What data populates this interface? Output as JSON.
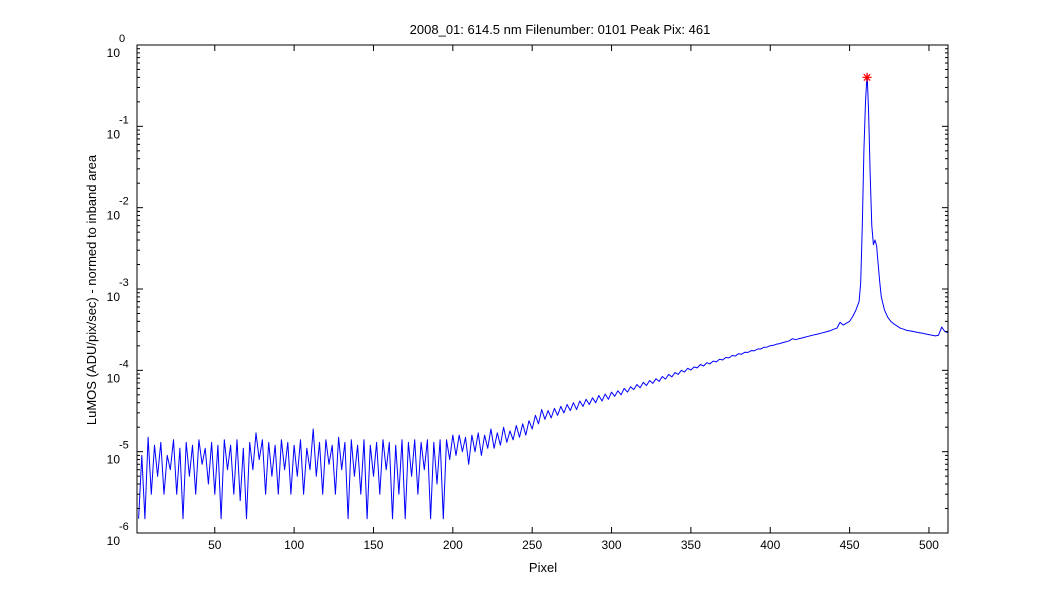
{
  "chart_data": {
    "type": "line",
    "title": "2008_01: 614.5 nm  Filenumber: 0101 Peak Pix: 461",
    "xlabel": "Pixel",
    "ylabel": "LuMOS (ADU/pix/sec) - normed to inband area",
    "xlim": [
      1,
      512
    ],
    "ylim": [
      1e-06,
      1
    ],
    "yscale": "log",
    "grid": false,
    "x_ticks": [
      50,
      100,
      150,
      200,
      250,
      300,
      350,
      400,
      450,
      500
    ],
    "y_ticks": [
      {
        "value": 1,
        "base": "10",
        "exp": "0"
      },
      {
        "value": 0.1,
        "base": "10",
        "exp": "-1"
      },
      {
        "value": 0.01,
        "base": "10",
        "exp": "-2"
      },
      {
        "value": 0.001,
        "base": "10",
        "exp": "-3"
      },
      {
        "value": 0.0001,
        "base": "10",
        "exp": "-4"
      },
      {
        "value": 1e-05,
        "base": "10",
        "exp": "-5"
      },
      {
        "value": 1e-06,
        "base": "10",
        "exp": "-6"
      }
    ],
    "series": [
      {
        "color": "#0000ff",
        "points": [
          [
            2,
            1.5e-06
          ],
          [
            4,
            9e-06
          ],
          [
            6,
            1.5e-06
          ],
          [
            8,
            1.5e-05
          ],
          [
            10,
            3e-06
          ],
          [
            12,
            1.2e-05
          ],
          [
            14,
            5e-06
          ],
          [
            16,
            1.3e-05
          ],
          [
            18,
            3e-06
          ],
          [
            20,
            9e-06
          ],
          [
            22,
            6e-06
          ],
          [
            24,
            1.4e-05
          ],
          [
            26,
            3e-06
          ],
          [
            28,
            1.1e-05
          ],
          [
            30,
            1.5e-06
          ],
          [
            32,
            1.3e-05
          ],
          [
            34,
            5e-06
          ],
          [
            36,
            1.2e-05
          ],
          [
            38,
            3e-06
          ],
          [
            40,
            1.4e-05
          ],
          [
            42,
            7e-06
          ],
          [
            44,
            1.1e-05
          ],
          [
            46,
            4e-06
          ],
          [
            48,
            1.3e-05
          ],
          [
            50,
            3e-06
          ],
          [
            52,
            1.2e-05
          ],
          [
            54,
            1.5e-06
          ],
          [
            56,
            1.4e-05
          ],
          [
            58,
            6e-06
          ],
          [
            60,
            1.2e-05
          ],
          [
            62,
            3e-06
          ],
          [
            64,
            1.4e-05
          ],
          [
            66,
            2.5e-06
          ],
          [
            68,
            1.1e-05
          ],
          [
            70,
            1.5e-06
          ],
          [
            72,
            1.3e-05
          ],
          [
            74,
            6e-06
          ],
          [
            76,
            1.7e-05
          ],
          [
            78,
            8e-06
          ],
          [
            80,
            1.4e-05
          ],
          [
            82,
            3e-06
          ],
          [
            84,
            1.3e-05
          ],
          [
            86,
            5e-06
          ],
          [
            88,
            1.2e-05
          ],
          [
            90,
            3e-06
          ],
          [
            92,
            1.4e-05
          ],
          [
            94,
            6e-06
          ],
          [
            96,
            1.3e-05
          ],
          [
            98,
            3e-06
          ],
          [
            100,
            1.2e-05
          ],
          [
            102,
            5e-06
          ],
          [
            104,
            1.4e-05
          ],
          [
            106,
            3e-06
          ],
          [
            108,
            1.1e-05
          ],
          [
            110,
            6e-06
          ],
          [
            112,
            1.9e-05
          ],
          [
            114,
            5e-06
          ],
          [
            116,
            1.3e-05
          ],
          [
            118,
            3e-06
          ],
          [
            120,
            1.4e-05
          ],
          [
            122,
            7e-06
          ],
          [
            124,
            1.2e-05
          ],
          [
            126,
            3e-06
          ],
          [
            128,
            1.5e-05
          ],
          [
            130,
            6e-06
          ],
          [
            132,
            1.3e-05
          ],
          [
            134,
            1.5e-06
          ],
          [
            136,
            1.4e-05
          ],
          [
            138,
            5e-06
          ],
          [
            140,
            1.2e-05
          ],
          [
            142,
            3e-06
          ],
          [
            144,
            1.4e-05
          ],
          [
            146,
            1.5e-06
          ],
          [
            148,
            1.2e-05
          ],
          [
            150,
            5e-06
          ],
          [
            152,
            1.3e-05
          ],
          [
            154,
            3e-06
          ],
          [
            156,
            1.4e-05
          ],
          [
            158,
            6e-06
          ],
          [
            160,
            1.3e-05
          ],
          [
            162,
            1.5e-06
          ],
          [
            164,
            1.2e-05
          ],
          [
            166,
            3e-06
          ],
          [
            168,
            1.4e-05
          ],
          [
            170,
            1.5e-06
          ],
          [
            172,
            1.3e-05
          ],
          [
            174,
            5e-06
          ],
          [
            176,
            1.4e-05
          ],
          [
            178,
            3e-06
          ],
          [
            180,
            1.3e-05
          ],
          [
            182,
            6e-06
          ],
          [
            184,
            1.4e-05
          ],
          [
            186,
            1.5e-06
          ],
          [
            188,
            1.3e-05
          ],
          [
            190,
            4e-06
          ],
          [
            192,
            1.4e-05
          ],
          [
            194,
            1.5e-06
          ],
          [
            196,
            1.4e-05
          ],
          [
            198,
            8e-06
          ],
          [
            200,
            1.6e-05
          ],
          [
            202,
            9e-06
          ],
          [
            204,
            1.6e-05
          ],
          [
            206,
            1e-05
          ],
          [
            208,
            1.5e-05
          ],
          [
            210,
            7e-06
          ],
          [
            212,
            1.6e-05
          ],
          [
            214,
            1e-05
          ],
          [
            216,
            1.7e-05
          ],
          [
            218,
            9e-06
          ],
          [
            220,
            1.6e-05
          ],
          [
            222,
            1.1e-05
          ],
          [
            224,
            1.9e-05
          ],
          [
            226,
            1.1e-05
          ],
          [
            228,
            1.7e-05
          ],
          [
            230,
            1.2e-05
          ],
          [
            232,
            2e-05
          ],
          [
            234,
            1.3e-05
          ],
          [
            236,
            1.8e-05
          ],
          [
            238,
            1.4e-05
          ],
          [
            240,
            2.1e-05
          ],
          [
            242,
            1.5e-05
          ],
          [
            244,
            2.2e-05
          ],
          [
            246,
            1.6e-05
          ],
          [
            248,
            2.4e-05
          ],
          [
            250,
            1.9e-05
          ],
          [
            252,
            2.8e-05
          ],
          [
            254,
            2.2e-05
          ],
          [
            256,
            3.3e-05
          ],
          [
            258,
            2.5e-05
          ],
          [
            260,
            3.2e-05
          ],
          [
            262,
            2.6e-05
          ],
          [
            264,
            3.4e-05
          ],
          [
            266,
            2.8e-05
          ],
          [
            268,
            3.6e-05
          ],
          [
            270,
            3e-05
          ],
          [
            272,
            3.8e-05
          ],
          [
            274,
            3.2e-05
          ],
          [
            276,
            4e-05
          ],
          [
            278,
            3.3e-05
          ],
          [
            280,
            4.2e-05
          ],
          [
            282,
            3.6e-05
          ],
          [
            284,
            4.4e-05
          ],
          [
            286,
            3.8e-05
          ],
          [
            288,
            4.6e-05
          ],
          [
            290,
            4e-05
          ],
          [
            292,
            4.9e-05
          ],
          [
            294,
            4.2e-05
          ],
          [
            296,
            5.1e-05
          ],
          [
            298,
            4.4e-05
          ],
          [
            300,
            5.4e-05
          ],
          [
            302,
            4.8e-05
          ],
          [
            304,
            5.6e-05
          ],
          [
            306,
            5e-05
          ],
          [
            308,
            6e-05
          ],
          [
            310,
            5.4e-05
          ],
          [
            312,
            6.3e-05
          ],
          [
            314,
            5.8e-05
          ],
          [
            316,
            6.7e-05
          ],
          [
            318,
            6.1e-05
          ],
          [
            320,
            7.1e-05
          ],
          [
            322,
            6.5e-05
          ],
          [
            324,
            7.5e-05
          ],
          [
            326,
            6.9e-05
          ],
          [
            328,
            7.9e-05
          ],
          [
            330,
            7.3e-05
          ],
          [
            332,
            8.4e-05
          ],
          [
            334,
            7.8e-05
          ],
          [
            336,
            8.9e-05
          ],
          [
            338,
            8.3e-05
          ],
          [
            340,
            9.4e-05
          ],
          [
            342,
            8.9e-05
          ],
          [
            344,
            0.0001
          ],
          [
            346,
            9.5e-05
          ],
          [
            348,
            0.000106
          ],
          [
            350,
            0.000101
          ],
          [
            352,
            0.00011
          ],
          [
            354,
            0.000107
          ],
          [
            356,
            0.000118
          ],
          [
            358,
            0.000113
          ],
          [
            360,
            0.000124
          ],
          [
            362,
            0.00012
          ],
          [
            364,
            0.00013
          ],
          [
            366,
            0.000127
          ],
          [
            368,
            0.000137
          ],
          [
            370,
            0.000134
          ],
          [
            372,
            0.000144
          ],
          [
            374,
            0.000142
          ],
          [
            376,
            0.000152
          ],
          [
            378,
            0.00015
          ],
          [
            380,
            0.00016
          ],
          [
            382,
            0.000158
          ],
          [
            384,
            0.000167
          ],
          [
            386,
            0.000166
          ],
          [
            388,
            0.000175
          ],
          [
            390,
            0.000174
          ],
          [
            392,
            0.000183
          ],
          [
            394,
            0.000183
          ],
          [
            396,
            0.000192
          ],
          [
            398,
            0.000193
          ],
          [
            400,
            0.000201
          ],
          [
            402,
            0.000203
          ],
          [
            404,
            0.00021
          ],
          [
            406,
            0.000213
          ],
          [
            408,
            0.00022
          ],
          [
            410,
            0.000224
          ],
          [
            412,
            0.000231
          ],
          [
            414,
            0.000245
          ],
          [
            416,
            0.000238
          ],
          [
            418,
            0.000245
          ],
          [
            420,
            0.00025
          ],
          [
            422,
            0.000256
          ],
          [
            424,
            0.000262
          ],
          [
            426,
            0.000268
          ],
          [
            428,
            0.000274
          ],
          [
            430,
            0.00028
          ],
          [
            432,
            0.000286
          ],
          [
            434,
            0.000293
          ],
          [
            436,
            0.0003
          ],
          [
            438,
            0.000308
          ],
          [
            440,
            0.00032
          ],
          [
            442,
            0.00033
          ],
          [
            444,
            0.00039
          ],
          [
            446,
            0.00036
          ],
          [
            448,
            0.00038
          ],
          [
            450,
            0.0004
          ],
          [
            452,
            0.00046
          ],
          [
            454,
            0.00055
          ],
          [
            456,
            0.0007
          ],
          [
            457,
            0.0012
          ],
          [
            458,
            0.006
          ],
          [
            459,
            0.05
          ],
          [
            460,
            0.2
          ],
          [
            461,
            0.45
          ],
          [
            462,
            0.15
          ],
          [
            463,
            0.025
          ],
          [
            464,
            0.006
          ],
          [
            465,
            0.0035
          ],
          [
            466,
            0.004
          ],
          [
            467,
            0.0034
          ],
          [
            468,
            0.002
          ],
          [
            469,
            0.0012
          ],
          [
            470,
            0.0008
          ],
          [
            472,
            0.00055
          ],
          [
            474,
            0.00045
          ],
          [
            476,
            0.0004
          ],
          [
            478,
            0.00037
          ],
          [
            480,
            0.00035
          ],
          [
            482,
            0.00033
          ],
          [
            484,
            0.00032
          ],
          [
            486,
            0.00031
          ],
          [
            488,
            0.000305
          ],
          [
            490,
            0.0003
          ],
          [
            492,
            0.000295
          ],
          [
            494,
            0.00029
          ],
          [
            496,
            0.000285
          ],
          [
            498,
            0.00028
          ],
          [
            500,
            0.000275
          ],
          [
            502,
            0.00027
          ],
          [
            504,
            0.000265
          ],
          [
            506,
            0.00027
          ],
          [
            508,
            0.00034
          ],
          [
            510,
            0.0003
          ],
          [
            512,
            0.00029
          ]
        ]
      }
    ],
    "peak_marker": {
      "x": 461,
      "y": 0.4,
      "color": "#ff0000"
    }
  }
}
